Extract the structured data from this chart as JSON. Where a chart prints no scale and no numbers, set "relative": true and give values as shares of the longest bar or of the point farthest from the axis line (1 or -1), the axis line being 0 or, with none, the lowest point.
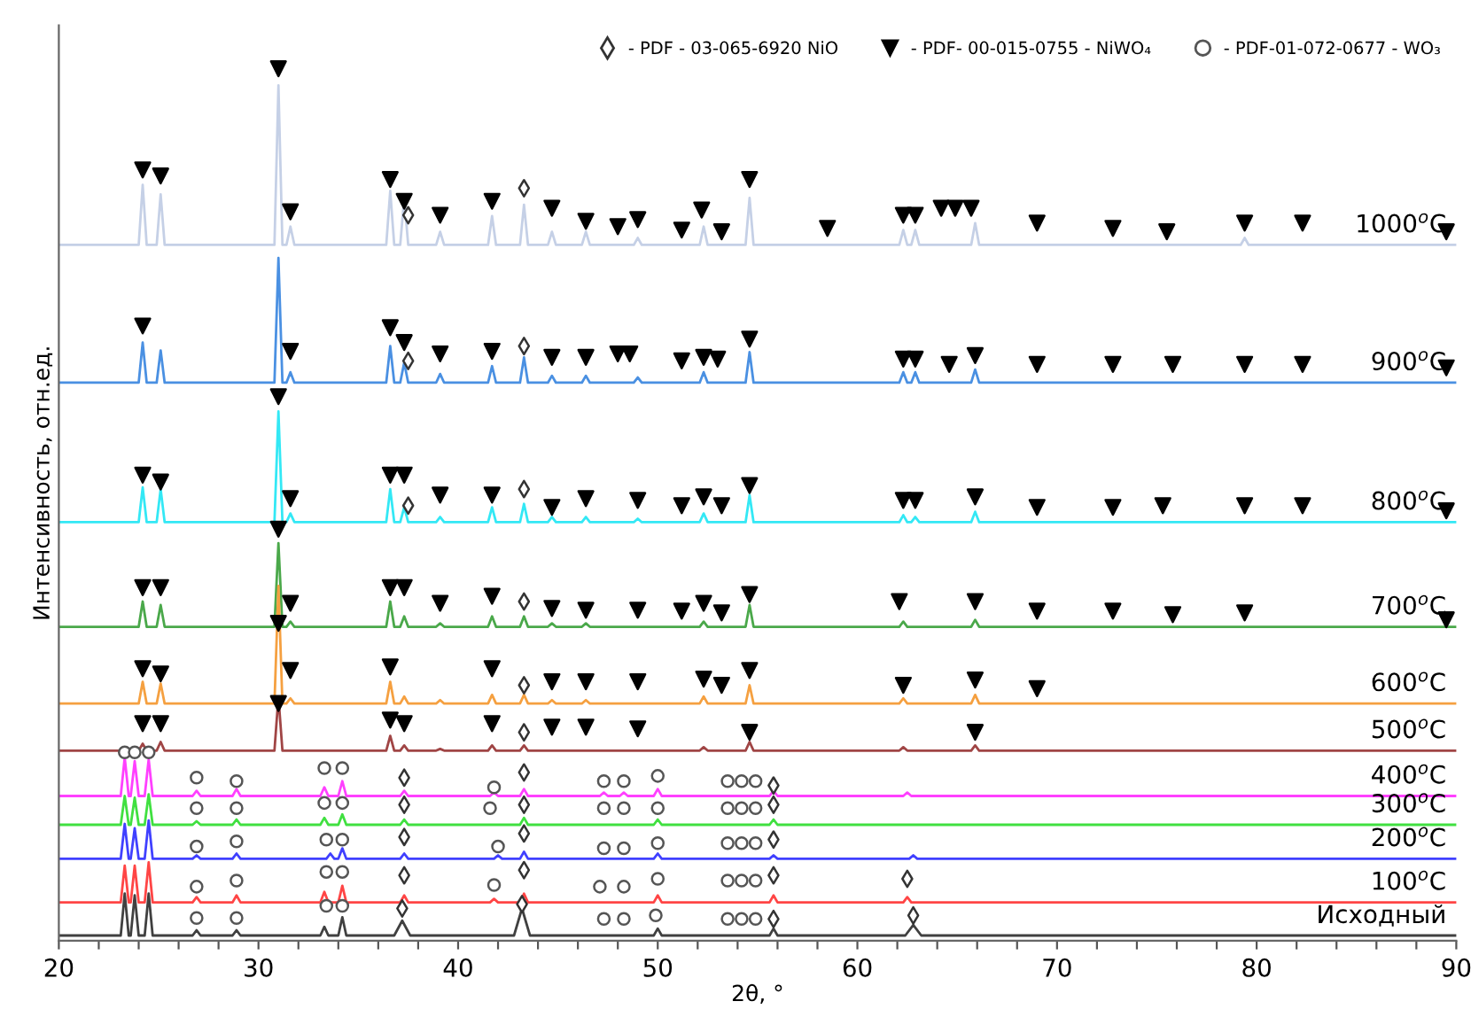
{
  "chart_data": {
    "type": "line",
    "relative": true,
    "xlabel": "2θ, °",
    "ylabel": "Интенсивность, отн.ед.",
    "xlim": [
      20,
      90
    ],
    "xticks": [
      20,
      {
        "value": 22,
        "label": null
      },
      {
        "value": 24,
        "label": null
      },
      {
        "value": 26,
        "label": null
      },
      {
        "value": 28,
        "label": null
      },
      30,
      {
        "value": 32,
        "label": null
      },
      {
        "value": 34,
        "label": null
      },
      {
        "value": 36,
        "label": null
      },
      {
        "value": 38,
        "label": null
      },
      40,
      {
        "value": 42,
        "label": null
      },
      {
        "value": 44,
        "label": null
      },
      {
        "value": 46,
        "label": null
      },
      {
        "value": 48,
        "label": null
      },
      50,
      {
        "value": 52,
        "label": null
      },
      {
        "value": 54,
        "label": null
      },
      {
        "value": 56,
        "label": null
      },
      {
        "value": 58,
        "label": null
      },
      60,
      {
        "value": 62,
        "label": null
      },
      {
        "value": 64,
        "label": null
      },
      {
        "value": 66,
        "label": null
      },
      {
        "value": 68,
        "label": null
      },
      70,
      {
        "value": 72,
        "label": null
      },
      {
        "value": 74,
        "label": null
      },
      {
        "value": 76,
        "label": null
      },
      {
        "value": 78,
        "label": null
      },
      80,
      {
        "value": 82,
        "label": null
      },
      {
        "value": 84,
        "label": null
      },
      {
        "value": 86,
        "label": null
      },
      {
        "value": 88,
        "label": null
      },
      90
    ],
    "grid": false,
    "legend": "top right",
    "series": [
      {
        "color": "#c5d0e6",
        "x": [
          20,
          24.0,
          24.2,
          24.4,
          24.9,
          25.1,
          25.3,
          30.8,
          31.0,
          31.2,
          31.4,
          31.6,
          31.8,
          36.4,
          36.6,
          36.8,
          37.1,
          37.3,
          37.5,
          38.9,
          39.1,
          39.3,
          41.5,
          41.7,
          41.9,
          43.1,
          43.3,
          43.5,
          44.5,
          44.7,
          44.9,
          46.2,
          46.4,
          46.6,
          48.8,
          49.0,
          49.2,
          52.1,
          52.3,
          52.5,
          54.4,
          54.6,
          54.8,
          62.1,
          62.3,
          62.5,
          62.7,
          62.9,
          63.1,
          65.7,
          65.9,
          66.1,
          79.2,
          79.4,
          79.6,
          90
        ],
        "values": [
          0.798,
          0.798,
          0.867,
          0.798,
          0.798,
          0.856,
          0.798,
          0.798,
          0.981,
          0.798,
          0.798,
          0.819,
          0.798,
          0.798,
          0.86,
          0.798,
          0.798,
          0.852,
          0.798,
          0.798,
          0.813,
          0.798,
          0.798,
          0.831,
          0.798,
          0.798,
          0.844,
          0.798,
          0.798,
          0.813,
          0.798,
          0.798,
          0.813,
          0.798,
          0.798,
          0.806,
          0.798,
          0.798,
          0.819,
          0.798,
          0.798,
          0.852,
          0.798,
          0.798,
          0.815,
          0.798,
          0.798,
          0.815,
          0.798,
          0.798,
          0.823,
          0.798,
          0.798,
          0.806,
          0.798,
          0.798
        ]
      },
      {
        "color": "#4a90e2",
        "x": [
          20,
          24.0,
          24.2,
          24.4,
          24.9,
          25.1,
          25.3,
          30.8,
          31.0,
          31.2,
          31.4,
          31.6,
          31.8,
          36.4,
          36.6,
          36.8,
          37.1,
          37.3,
          37.5,
          38.9,
          39.1,
          39.3,
          41.5,
          41.7,
          41.9,
          43.1,
          43.3,
          43.5,
          44.5,
          44.7,
          44.9,
          46.2,
          46.4,
          46.6,
          48.8,
          49.0,
          49.2,
          52.1,
          52.3,
          52.5,
          54.4,
          54.6,
          54.8,
          62.1,
          62.3,
          62.5,
          62.7,
          62.9,
          63.1,
          65.7,
          65.9,
          66.1,
          90
        ],
        "values": [
          0.64,
          0.64,
          0.686,
          0.64,
          0.64,
          0.677,
          0.64,
          0.64,
          0.783,
          0.64,
          0.64,
          0.652,
          0.64,
          0.64,
          0.682,
          0.64,
          0.64,
          0.663,
          0.64,
          0.64,
          0.65,
          0.64,
          0.64,
          0.659,
          0.64,
          0.64,
          0.669,
          0.64,
          0.64,
          0.648,
          0.64,
          0.64,
          0.648,
          0.64,
          0.64,
          0.646,
          0.64,
          0.64,
          0.652,
          0.64,
          0.64,
          0.675,
          0.64,
          0.64,
          0.652,
          0.64,
          0.64,
          0.652,
          0.64,
          0.64,
          0.655,
          0.64,
          0.64
        ]
      },
      {
        "color": "#33e8f5",
        "x": [
          20,
          24.0,
          24.2,
          24.4,
          24.9,
          25.1,
          25.3,
          30.8,
          31.0,
          31.2,
          31.4,
          31.6,
          31.8,
          36.4,
          36.6,
          36.8,
          37.1,
          37.3,
          37.5,
          38.9,
          39.1,
          39.3,
          41.5,
          41.7,
          41.9,
          43.1,
          43.3,
          43.5,
          44.5,
          44.7,
          44.9,
          46.2,
          46.4,
          46.6,
          48.8,
          49.0,
          49.2,
          52.1,
          52.3,
          52.5,
          54.4,
          54.6,
          54.8,
          62.1,
          62.3,
          62.5,
          62.7,
          62.9,
          63.1,
          65.7,
          65.9,
          66.1,
          90
        ],
        "values": [
          0.48,
          0.48,
          0.52,
          0.48,
          0.48,
          0.518,
          0.48,
          0.48,
          0.607,
          0.48,
          0.48,
          0.49,
          0.48,
          0.48,
          0.518,
          0.48,
          0.48,
          0.497,
          0.48,
          0.48,
          0.486,
          0.48,
          0.48,
          0.497,
          0.48,
          0.48,
          0.501,
          0.48,
          0.48,
          0.486,
          0.48,
          0.48,
          0.486,
          0.48,
          0.48,
          0.484,
          0.48,
          0.48,
          0.49,
          0.48,
          0.48,
          0.511,
          0.48,
          0.48,
          0.488,
          0.48,
          0.48,
          0.486,
          0.48,
          0.48,
          0.492,
          0.48,
          0.48
        ]
      },
      {
        "color": "#4aa84a",
        "x": [
          20,
          24.0,
          24.2,
          24.4,
          24.9,
          25.1,
          25.3,
          30.8,
          31.0,
          31.2,
          31.4,
          31.6,
          31.8,
          36.4,
          36.6,
          36.8,
          37.1,
          37.3,
          37.5,
          38.9,
          39.1,
          39.3,
          41.5,
          41.7,
          41.9,
          43.1,
          43.3,
          43.5,
          44.5,
          44.7,
          44.9,
          46.2,
          46.4,
          46.6,
          52.1,
          52.3,
          52.5,
          54.4,
          54.6,
          54.8,
          62.1,
          62.3,
          62.5,
          65.7,
          65.9,
          66.1,
          90
        ],
        "values": [
          0.36,
          0.36,
          0.389,
          0.36,
          0.36,
          0.385,
          0.36,
          0.36,
          0.456,
          0.36,
          0.36,
          0.366,
          0.36,
          0.36,
          0.389,
          0.36,
          0.36,
          0.372,
          0.36,
          0.36,
          0.364,
          0.36,
          0.36,
          0.372,
          0.36,
          0.36,
          0.372,
          0.36,
          0.36,
          0.364,
          0.36,
          0.36,
          0.364,
          0.36,
          0.36,
          0.366,
          0.36,
          0.36,
          0.385,
          0.36,
          0.36,
          0.366,
          0.36,
          0.36,
          0.368,
          0.36,
          0.36
        ]
      },
      {
        "color": "#f5a040",
        "x": [
          20,
          24.0,
          24.2,
          24.4,
          24.9,
          25.1,
          25.3,
          30.8,
          31.0,
          31.2,
          31.4,
          31.6,
          31.8,
          36.4,
          36.6,
          36.8,
          37.1,
          37.3,
          37.5,
          38.9,
          39.1,
          39.3,
          41.5,
          41.7,
          41.9,
          43.1,
          43.3,
          43.5,
          44.5,
          44.7,
          44.9,
          46.2,
          46.4,
          46.6,
          52.1,
          52.3,
          52.5,
          54.4,
          54.6,
          54.8,
          62.1,
          62.3,
          62.5,
          65.7,
          65.9,
          66.1,
          90
        ],
        "values": [
          0.272,
          0.272,
          0.297,
          0.272,
          0.272,
          0.295,
          0.272,
          0.272,
          0.407,
          0.272,
          0.272,
          0.278,
          0.272,
          0.272,
          0.297,
          0.272,
          0.272,
          0.28,
          0.272,
          0.272,
          0.276,
          0.272,
          0.272,
          0.282,
          0.272,
          0.272,
          0.282,
          0.272,
          0.272,
          0.276,
          0.272,
          0.272,
          0.276,
          0.272,
          0.272,
          0.28,
          0.272,
          0.272,
          0.293,
          0.272,
          0.272,
          0.278,
          0.272,
          0.272,
          0.282,
          0.272,
          0.272
        ]
      },
      {
        "color": "#a04545",
        "x": [
          20,
          24.0,
          24.2,
          24.4,
          24.9,
          25.1,
          25.3,
          30.8,
          31.0,
          31.2,
          36.4,
          36.6,
          36.8,
          37.1,
          37.3,
          37.5,
          38.9,
          39.1,
          39.3,
          41.5,
          41.7,
          41.9,
          43.1,
          43.3,
          43.5,
          52.1,
          52.3,
          52.5,
          54.4,
          54.6,
          54.8,
          62.1,
          62.3,
          62.5,
          65.7,
          65.9,
          66.1,
          90
        ],
        "values": [
          0.218,
          0.218,
          0.226,
          0.218,
          0.218,
          0.228,
          0.218,
          0.218,
          0.28,
          0.218,
          0.218,
          0.235,
          0.218,
          0.218,
          0.224,
          0.218,
          0.218,
          0.22,
          0.218,
          0.218,
          0.224,
          0.218,
          0.218,
          0.224,
          0.218,
          0.218,
          0.222,
          0.218,
          0.218,
          0.228,
          0.218,
          0.218,
          0.222,
          0.218,
          0.218,
          0.224,
          0.218,
          0.218
        ]
      },
      {
        "color": "#ff40ff",
        "x": [
          20,
          23.1,
          23.3,
          23.5,
          23.6,
          23.8,
          24.0,
          24.3,
          24.5,
          24.7,
          26.7,
          26.9,
          27.1,
          28.7,
          28.9,
          29.1,
          33.1,
          33.3,
          33.5,
          34.0,
          34.2,
          34.4,
          37.1,
          37.3,
          37.5,
          41.6,
          41.8,
          42.0,
          43.1,
          43.3,
          43.5,
          47.1,
          47.3,
          47.5,
          48.1,
          48.3,
          48.5,
          49.8,
          50.0,
          50.2,
          55.6,
          55.8,
          56.0,
          62.3,
          62.5,
          62.7,
          90
        ],
        "values": [
          0.166,
          0.166,
          0.21,
          0.166,
          0.166,
          0.206,
          0.166,
          0.166,
          0.208,
          0.166,
          0.166,
          0.172,
          0.166,
          0.166,
          0.174,
          0.166,
          0.166,
          0.176,
          0.166,
          0.166,
          0.183,
          0.166,
          0.166,
          0.172,
          0.166,
          0.166,
          0.17,
          0.166,
          0.166,
          0.174,
          0.166,
          0.166,
          0.17,
          0.166,
          0.166,
          0.17,
          0.166,
          0.166,
          0.174,
          0.166,
          0.166,
          0.172,
          0.166,
          0.166,
          0.17,
          0.166,
          0.166
        ]
      },
      {
        "color": "#40e040",
        "x": [
          20,
          23.1,
          23.3,
          23.5,
          23.6,
          23.8,
          24.0,
          24.3,
          24.5,
          24.7,
          26.7,
          26.9,
          27.1,
          28.7,
          28.9,
          29.1,
          33.1,
          33.3,
          33.5,
          34.0,
          34.2,
          34.4,
          37.1,
          37.3,
          37.5,
          43.1,
          43.3,
          43.5,
          49.8,
          50.0,
          50.2,
          55.6,
          55.8,
          56.0,
          90
        ],
        "values": [
          0.133,
          0.133,
          0.166,
          0.133,
          0.133,
          0.164,
          0.133,
          0.133,
          0.168,
          0.133,
          0.133,
          0.137,
          0.133,
          0.133,
          0.139,
          0.133,
          0.133,
          0.141,
          0.133,
          0.133,
          0.145,
          0.133,
          0.133,
          0.139,
          0.133,
          0.133,
          0.141,
          0.133,
          0.133,
          0.139,
          0.133,
          0.133,
          0.139,
          0.133,
          0.133
        ]
      },
      {
        "color": "#4040ff",
        "x": [
          20,
          23.1,
          23.3,
          23.5,
          23.6,
          23.8,
          24.0,
          24.3,
          24.5,
          24.7,
          26.7,
          26.9,
          27.1,
          28.7,
          28.9,
          29.1,
          33.4,
          33.6,
          33.8,
          34.0,
          34.2,
          34.4,
          37.1,
          37.3,
          37.5,
          41.8,
          42.0,
          42.2,
          43.1,
          43.3,
          43.5,
          49.8,
          50.0,
          50.2,
          55.6,
          55.8,
          56.0,
          62.6,
          62.8,
          63.0,
          90
        ],
        "values": [
          0.094,
          0.094,
          0.134,
          0.094,
          0.094,
          0.129,
          0.094,
          0.094,
          0.138,
          0.094,
          0.094,
          0.098,
          0.094,
          0.094,
          0.1,
          0.094,
          0.094,
          0.1,
          0.094,
          0.094,
          0.106,
          0.094,
          0.094,
          0.1,
          0.094,
          0.094,
          0.098,
          0.094,
          0.094,
          0.102,
          0.094,
          0.094,
          0.1,
          0.094,
          0.094,
          0.098,
          0.094,
          0.094,
          0.098,
          0.094,
          0.094
        ]
      },
      {
        "color": "#ff4545",
        "x": [
          20,
          23.1,
          23.3,
          23.5,
          23.6,
          23.8,
          24.0,
          24.3,
          24.5,
          24.7,
          26.7,
          26.9,
          27.1,
          28.7,
          28.9,
          29.1,
          33.1,
          33.3,
          33.5,
          34.0,
          34.2,
          34.4,
          37.1,
          37.3,
          37.5,
          41.6,
          41.8,
          42.0,
          43.1,
          43.3,
          43.5,
          49.8,
          50.0,
          50.2,
          55.6,
          55.8,
          56.0,
          62.3,
          62.5,
          62.7,
          90
        ],
        "values": [
          0.044,
          0.044,
          0.086,
          0.044,
          0.044,
          0.086,
          0.044,
          0.044,
          0.09,
          0.044,
          0.044,
          0.05,
          0.044,
          0.044,
          0.052,
          0.044,
          0.044,
          0.056,
          0.044,
          0.044,
          0.063,
          0.044,
          0.044,
          0.052,
          0.044,
          0.044,
          0.048,
          0.044,
          0.044,
          0.054,
          0.044,
          0.044,
          0.052,
          0.044,
          0.044,
          0.052,
          0.044,
          0.044,
          0.05,
          0.044,
          0.044
        ]
      },
      {
        "color": "#404040",
        "x": [
          20,
          23.1,
          23.3,
          23.5,
          23.6,
          23.8,
          24.0,
          24.3,
          24.5,
          24.7,
          26.7,
          26.9,
          27.1,
          28.7,
          28.9,
          29.1,
          33.1,
          33.3,
          33.5,
          34.0,
          34.2,
          34.4,
          36.8,
          37.2,
          37.6,
          42.8,
          43.2,
          43.6,
          49.8,
          50.0,
          50.2,
          55.6,
          55.8,
          56.0,
          62.4,
          62.8,
          63.2,
          90
        ],
        "values": [
          0.006,
          0.006,
          0.054,
          0.006,
          0.006,
          0.052,
          0.006,
          0.006,
          0.054,
          0.006,
          0.006,
          0.012,
          0.006,
          0.006,
          0.012,
          0.006,
          0.006,
          0.016,
          0.006,
          0.006,
          0.027,
          0.006,
          0.006,
          0.023,
          0.006,
          0.006,
          0.037,
          0.006,
          0.006,
          0.014,
          0.006,
          0.006,
          0.014,
          0.006,
          0.006,
          0.018,
          0.006,
          0.006
        ]
      },
      {
        "type": "scatter",
        "marker": "diamond",
        "name": "- PDF - 03-065-6920 NiO",
        "color": "#333333",
        "x": [
          43.3,
          37.5,
          43.3,
          37.5,
          43.3,
          37.5,
          43.3,
          43.3,
          43.3,
          37.3,
          43.3,
          55.8,
          37.3,
          43.3,
          55.8,
          37.3,
          43.3,
          55.8,
          37.3,
          43.3,
          55.8,
          62.5,
          37.2,
          43.2,
          55.8,
          62.8
        ],
        "values": [
          0.863,
          0.832,
          0.682,
          0.665,
          0.518,
          0.499,
          0.389,
          0.293,
          0.239,
          0.187,
          0.193,
          0.178,
          0.156,
          0.156,
          0.156,
          0.119,
          0.123,
          0.116,
          0.075,
          0.081,
          0.075,
          0.071,
          0.037,
          0.042,
          0.025,
          0.029
        ]
      },
      {
        "type": "scatter",
        "marker": "triangle",
        "name": "- PDF- 00-015-0755 - NiWO₄",
        "color": "#000000",
        "x": [
          24.2,
          25.1,
          31.0,
          31.6,
          36.6,
          37.3,
          39.1,
          41.7,
          44.7,
          46.4,
          48.0,
          49.0,
          51.2,
          52.2,
          53.2,
          54.6,
          58.5,
          62.3,
          62.9,
          64.2,
          64.9,
          65.7,
          69.0,
          72.8,
          75.5,
          79.4,
          82.3,
          89.5,
          24.2,
          31.6,
          36.6,
          37.3,
          39.1,
          41.7,
          44.7,
          46.4,
          48.0,
          48.6,
          51.2,
          52.3,
          53.0,
          54.6,
          62.3,
          62.9,
          64.6,
          65.9,
          69.0,
          72.8,
          75.8,
          79.4,
          82.3,
          89.5,
          24.2,
          25.1,
          31.0,
          31.6,
          36.6,
          37.3,
          39.1,
          41.7,
          44.7,
          46.4,
          49.0,
          51.2,
          52.3,
          53.2,
          54.6,
          62.3,
          62.9,
          65.9,
          69.0,
          72.8,
          75.3,
          79.4,
          82.3,
          89.5,
          24.2,
          25.1,
          31.0,
          31.6,
          36.6,
          37.3,
          39.1,
          41.7,
          44.7,
          46.4,
          49.0,
          51.2,
          52.3,
          53.2,
          54.6,
          62.1,
          65.9,
          69.0,
          72.8,
          75.8,
          79.4,
          89.5,
          24.2,
          25.1,
          31.0,
          31.6,
          36.6,
          41.7,
          44.7,
          46.4,
          49.0,
          52.3,
          53.2,
          54.6,
          62.3,
          65.9,
          69.0,
          24.2,
          25.1,
          31.0,
          36.6,
          37.3,
          41.7,
          44.7,
          46.4,
          49.0,
          54.6,
          65.9
        ],
        "values": [
          0.884,
          0.877,
          1.0,
          0.836,
          0.873,
          0.848,
          0.832,
          0.848,
          0.84,
          0.825,
          0.819,
          0.827,
          0.815,
          0.838,
          0.813,
          0.873,
          0.817,
          0.832,
          0.832,
          0.84,
          0.84,
          0.84,
          0.823,
          0.817,
          0.813,
          0.823,
          0.823,
          0.813,
          0.705,
          0.676,
          0.703,
          0.686,
          0.673,
          0.676,
          0.669,
          0.669,
          0.673,
          0.673,
          0.665,
          0.669,
          0.667,
          0.69,
          0.667,
          0.667,
          0.661,
          0.671,
          0.661,
          0.661,
          0.661,
          0.661,
          0.661,
          0.657,
          0.534,
          0.526,
          0.624,
          0.507,
          0.534,
          0.534,
          0.511,
          0.511,
          0.497,
          0.507,
          0.505,
          0.499,
          0.509,
          0.499,
          0.522,
          0.505,
          0.505,
          0.509,
          0.497,
          0.497,
          0.499,
          0.499,
          0.499,
          0.493,
          0.405,
          0.405,
          0.472,
          0.387,
          0.405,
          0.405,
          0.387,
          0.395,
          0.381,
          0.379,
          0.379,
          0.378,
          0.387,
          0.376,
          0.397,
          0.389,
          0.389,
          0.378,
          0.378,
          0.374,
          0.376,
          0.368,
          0.312,
          0.306,
          0.364,
          0.31,
          0.314,
          0.312,
          0.297,
          0.297,
          0.297,
          0.3,
          0.293,
          0.31,
          0.293,
          0.299,
          0.289,
          0.249,
          0.249,
          0.272,
          0.253,
          0.249,
          0.249,
          0.245,
          0.245,
          0.243,
          0.239,
          0.239
        ]
      },
      {
        "type": "scatter",
        "marker": "circle",
        "name": "- PDF-01-072-0677 - WO₃",
        "color": "#555555",
        "x": [
          23.3,
          23.8,
          24.5,
          26.9,
          28.9,
          33.3,
          34.2,
          41.8,
          47.3,
          48.3,
          50.0,
          53.5,
          54.2,
          54.9,
          26.9,
          28.9,
          33.3,
          34.2,
          41.6,
          47.3,
          48.3,
          50.0,
          53.5,
          54.2,
          54.9,
          26.9,
          28.9,
          33.4,
          34.2,
          42.0,
          47.3,
          48.3,
          50.0,
          53.5,
          54.2,
          54.9,
          26.9,
          28.9,
          33.4,
          34.2,
          41.8,
          47.1,
          48.3,
          50.0,
          53.5,
          54.2,
          54.9,
          26.9,
          28.9,
          33.4,
          34.2,
          47.3,
          48.3,
          49.9,
          53.5,
          54.2,
          54.9
        ],
        "values": [
          0.216,
          0.216,
          0.216,
          0.187,
          0.183,
          0.198,
          0.198,
          0.176,
          0.183,
          0.183,
          0.189,
          0.183,
          0.183,
          0.183,
          0.152,
          0.152,
          0.158,
          0.158,
          0.152,
          0.152,
          0.152,
          0.152,
          0.152,
          0.152,
          0.152,
          0.108,
          0.114,
          0.116,
          0.116,
          0.108,
          0.106,
          0.106,
          0.112,
          0.112,
          0.112,
          0.112,
          0.062,
          0.069,
          0.079,
          0.079,
          0.064,
          0.062,
          0.062,
          0.071,
          0.069,
          0.069,
          0.069,
          0.026,
          0.026,
          0.04,
          0.04,
          0.025,
          0.025,
          0.029,
          0.025,
          0.025,
          0.025
        ]
      }
    ],
    "annotations": [
      "1000$^{o}$C",
      "900$^{o}$C",
      "800$^{o}$C",
      "700$^{o}$C",
      "600$^{o}$C",
      "500$^{o}$C",
      "400$^{o}$C",
      "300$^{o}$C",
      "200$^{o}$C",
      "100$^{o}$C",
      "Исходный"
    ]
  }
}
